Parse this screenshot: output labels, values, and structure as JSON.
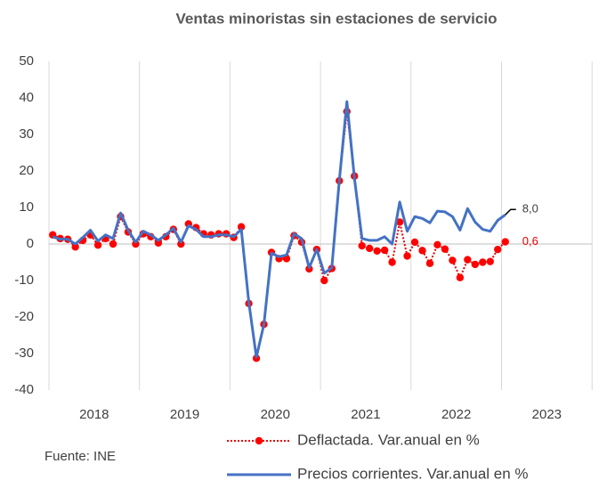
{
  "chart_data": {
    "type": "line",
    "title": "Ventas minoristas sin estaciones de servicio",
    "x_labels": [
      "2018",
      "2019",
      "2020",
      "2021",
      "2022",
      "2023"
    ],
    "series": [
      {
        "name": "Deflactada. Var.anual en %",
        "color": "#e00000",
        "values": [
          2.5,
          1.5,
          1.3,
          -0.8,
          1.0,
          2.5,
          -0.3,
          1.5,
          0.0,
          7.5,
          3.3,
          0.0,
          2.8,
          2.0,
          0.3,
          2.0,
          4.0,
          0.0,
          5.5,
          4.5,
          2.8,
          2.5,
          2.8,
          2.8,
          1.8,
          4.7,
          -16.3,
          -31.3,
          -22.0,
          -2.3,
          -4.0,
          -4.0,
          2.3,
          0.5,
          -6.8,
          -1.5,
          -10.0,
          -6.7,
          17.3,
          36.3,
          18.6,
          -0.5,
          -1.2,
          -1.9,
          -1.7,
          -5.0,
          6.0,
          -3.3,
          0.5,
          -1.8,
          -5.3,
          -0.2,
          -1.4,
          -4.5,
          -9.2,
          -4.3,
          -5.6,
          -5.0,
          -4.8,
          -1.5,
          0.6
        ],
        "value_labels": [
          null,
          null,
          null,
          null,
          null,
          null,
          null,
          null,
          null,
          null,
          null,
          null,
          null,
          null,
          null,
          null,
          null,
          null,
          null,
          null,
          null,
          null,
          null,
          null,
          null,
          null,
          null,
          null,
          null,
          null,
          null,
          null,
          null,
          null,
          null,
          null,
          null,
          null,
          null,
          null,
          null,
          null,
          null,
          null,
          null,
          null,
          null,
          null,
          null,
          null,
          null,
          null,
          null,
          null,
          null,
          null,
          null,
          null,
          null,
          null,
          "0,6"
        ]
      },
      {
        "name": "Precios corrientes. Var.anual en %",
        "color": "#4472c4",
        "values": [
          2.0,
          1.3,
          1.3,
          0.0,
          1.8,
          3.8,
          0.8,
          2.5,
          1.5,
          8.5,
          3.8,
          0.5,
          3.5,
          2.5,
          1.0,
          2.5,
          4.3,
          0.5,
          5.0,
          4.0,
          2.0,
          2.0,
          2.5,
          2.5,
          2.0,
          4.0,
          -16.0,
          -31.0,
          -22.0,
          -2.5,
          -3.5,
          -3.0,
          2.8,
          1.5,
          -6.5,
          -1.5,
          -8.0,
          -6.5,
          17.5,
          39.0,
          18.0,
          1.5,
          1.0,
          1.0,
          2.0,
          0.0,
          11.5,
          3.5,
          7.5,
          7.0,
          5.8,
          9.0,
          8.8,
          7.5,
          3.8,
          9.7,
          6.0,
          4.0,
          3.5,
          6.5,
          8.0
        ],
        "value_labels": [
          null,
          null,
          null,
          null,
          null,
          null,
          null,
          null,
          null,
          null,
          null,
          null,
          null,
          null,
          null,
          null,
          null,
          null,
          null,
          null,
          null,
          null,
          null,
          null,
          null,
          null,
          null,
          null,
          null,
          null,
          null,
          null,
          null,
          null,
          null,
          null,
          null,
          null,
          null,
          null,
          null,
          null,
          null,
          null,
          null,
          null,
          null,
          null,
          null,
          null,
          null,
          null,
          null,
          null,
          null,
          null,
          null,
          null,
          null,
          null,
          "8,0"
        ]
      }
    ],
    "ylim": [
      -40,
      50
    ],
    "yticks": [
      -40,
      -30,
      -20,
      -10,
      0,
      10,
      20,
      30,
      40,
      50
    ],
    "source": "Fuente: INE"
  }
}
